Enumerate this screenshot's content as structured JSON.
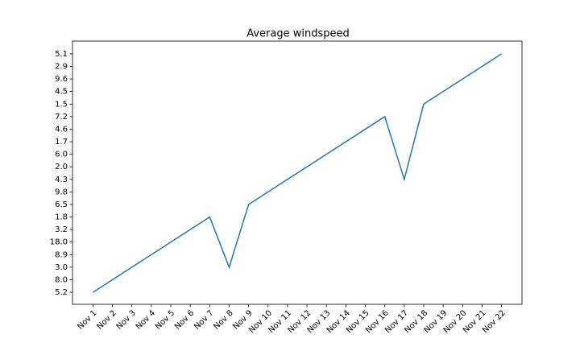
{
  "chart_data": {
    "type": "line",
    "title": "Average windspeed",
    "categories": [
      "Nov 1",
      "Nov 2",
      "Nov 3",
      "Nov 4",
      "Nov 5",
      "Nov 6",
      "Nov 7",
      "Nov 8",
      "Nov 9",
      "Nov 10",
      "Nov 11",
      "Nov 12",
      "Nov 13",
      "Nov 14",
      "Nov 15",
      "Nov 16",
      "Nov 17",
      "Nov 18",
      "Nov 19",
      "Nov 20",
      "Nov 21",
      "Nov 22"
    ],
    "values": [
      5.2,
      8,
      3,
      8.9,
      18,
      3.2,
      1.8,
      3,
      6.5,
      9.8,
      4.3,
      2,
      6,
      1.7,
      4.6,
      7.2,
      4.3,
      1.5,
      4.5,
      9.6,
      2.9,
      5.1
    ],
    "color": "#1f77b4",
    "yticks": [
      5.2,
      {
        "value": 8,
        "label": "8.0"
      },
      {
        "value": 3,
        "label": "3.0"
      },
      8.9,
      {
        "value": 18,
        "label": "18.0"
      },
      3.2,
      1.8,
      6.5,
      9.8,
      4.3,
      {
        "value": 2,
        "label": "2.0"
      },
      {
        "value": 6,
        "label": "6.0"
      },
      1.7,
      4.6,
      7.2,
      1.5,
      4.5,
      9.6,
      2.9,
      5.1
    ]
  }
}
